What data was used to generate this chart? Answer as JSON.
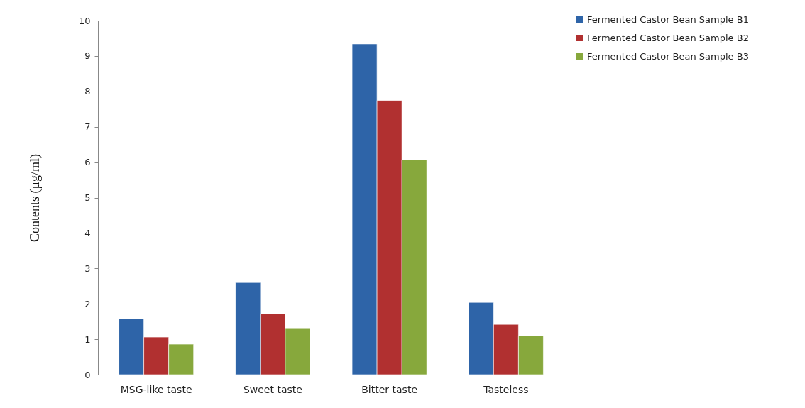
{
  "chart_data": {
    "type": "bar",
    "ylabel": "Contents (µg/ml)",
    "categories": [
      "MSG-like taste",
      "Sweet taste",
      "Bitter taste",
      "Tasteless"
    ],
    "series": [
      {
        "name": "Fermented Castor Bean Sample B1",
        "color": "#2e64a8",
        "values": [
          1.58,
          2.6,
          9.34,
          2.04
        ]
      },
      {
        "name": "Fermented Castor Bean Sample B2",
        "color": "#b13030",
        "values": [
          1.06,
          1.72,
          7.74,
          1.42
        ]
      },
      {
        "name": "Fermented Castor Bean Sample B3",
        "color": "#87a83c",
        "values": [
          0.86,
          1.32,
          6.07,
          1.1
        ]
      }
    ],
    "ylim": [
      0,
      10
    ],
    "yticks": [
      0,
      1,
      2,
      3,
      4,
      5,
      6,
      7,
      8,
      9,
      10
    ],
    "grid": false,
    "legend": "top right"
  }
}
